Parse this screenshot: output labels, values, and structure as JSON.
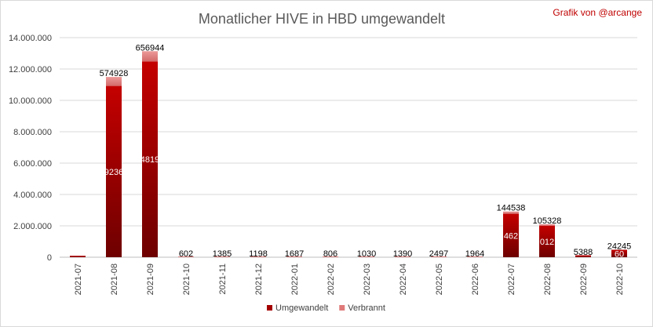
{
  "chart_data": {
    "type": "bar",
    "stacked": true,
    "title": "Monatlicher HIVE in HBD umgewandelt",
    "credit": "Grafik von @arcange",
    "categories": [
      "2021-07",
      "2021-08",
      "2021-09",
      "2021-10",
      "2021-11",
      "2021-12",
      "2022-01",
      "2022-02",
      "2022-03",
      "2022-04",
      "2022-05",
      "2022-06",
      "2022-07",
      "2022-08",
      "2022-09",
      "2022-10"
    ],
    "series": [
      {
        "name": "Umgewandelt",
        "color": "#a50000",
        "values": [
          90000,
          10920000,
          12480000,
          0,
          0,
          0,
          0,
          0,
          0,
          0,
          0,
          0,
          2770000,
          2000000,
          100000,
          450000
        ],
        "labels": [
          "",
          "9236",
          "4819",
          "",
          "",
          "",
          "",
          "",
          "",
          "",
          "",
          "",
          "462",
          "012",
          "",
          "60"
        ]
      },
      {
        "name": "Verbrannt",
        "color": "#e07a7a",
        "values": [
          0,
          574928,
          656944,
          602,
          1385,
          1198,
          1687,
          806,
          1030,
          1390,
          2497,
          1964,
          144538,
          105328,
          5388,
          24245
        ],
        "labels": [
          "",
          "574928",
          "656944",
          "602",
          "1385",
          "1198",
          "1687",
          "806",
          "1030",
          "1390",
          "2497",
          "1964",
          "144538",
          "105328",
          "5388",
          "24245"
        ]
      }
    ],
    "ylim": [
      0,
      14000000
    ],
    "yticks": [
      0,
      2000000,
      4000000,
      6000000,
      8000000,
      10000000,
      12000000,
      14000000
    ],
    "ytick_labels": [
      "0",
      "2.000.000",
      "4.000.000",
      "6.000.000",
      "8.000.000",
      "10.000.000",
      "12.000.000",
      "14.000.000"
    ],
    "grid": true,
    "legend_position": "bottom"
  }
}
